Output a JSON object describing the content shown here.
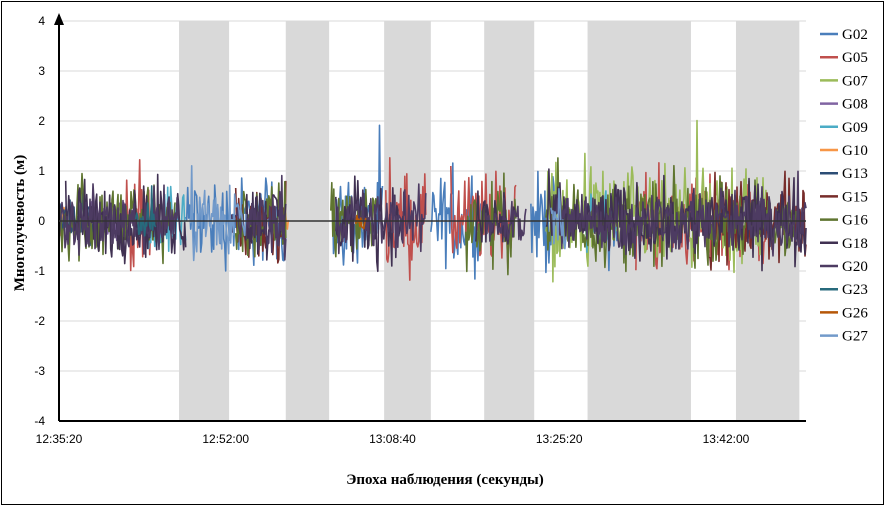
{
  "chart_data": {
    "type": "line",
    "xlabel": "Эпоха наблюдения (секунды)",
    "ylabel": "Многолучевость (м)",
    "ylim": [
      -4,
      4
    ],
    "yticks": [
      "4",
      "3",
      "2",
      "1",
      "0",
      "-1",
      "-2",
      "-3",
      "-4"
    ],
    "x_range": [
      "12:35:20",
      "13:50:00"
    ],
    "xticks": [
      "12:35:20",
      "12:52:00",
      "13:08:40",
      "13:25:20",
      "13:42:00"
    ],
    "grid": true,
    "legend_position": "right",
    "shaded_intervals": [
      [
        "12:47:20",
        "12:52:20"
      ],
      [
        "12:58:00",
        "13:02:20"
      ],
      [
        "13:07:50",
        "13:12:30"
      ],
      [
        "13:17:50",
        "13:22:50"
      ],
      [
        "13:28:10",
        "13:38:30"
      ],
      [
        "13:43:00",
        "13:49:20"
      ]
    ],
    "series": [
      {
        "name": "G02",
        "color": "#4a7ebb",
        "segments": [
          [
            "12:48:00",
            "12:58:00"
          ],
          [
            "13:02:40",
            "13:07:40"
          ],
          [
            "13:12:30",
            "13:17:30"
          ],
          [
            "13:22:30",
            "13:25:30"
          ],
          [
            "13:30:00",
            "13:32:00"
          ]
        ],
        "amplitude": 1.3
      },
      {
        "name": "G05",
        "color": "#c0504d",
        "segments": [
          [
            "12:42:00",
            "12:45:00"
          ],
          [
            "13:08:00",
            "13:12:00"
          ],
          [
            "13:14:30",
            "13:21:00"
          ],
          [
            "13:33:00",
            "13:46:00"
          ]
        ],
        "amplitude": 1.4
      },
      {
        "name": "G07",
        "color": "#9bbb59",
        "segments": [
          [
            "13:24:00",
            "13:46:00"
          ]
        ],
        "amplitude": 1.5
      },
      {
        "name": "G08",
        "color": "#8064a2",
        "segments": [
          [
            "12:38:00",
            "12:42:00"
          ]
        ],
        "amplitude": 0.6
      },
      {
        "name": "G09",
        "color": "#4bacc6",
        "segments": [
          [
            "12:44:00",
            "12:48:00"
          ],
          [
            "13:28:00",
            "13:31:00"
          ]
        ],
        "amplitude": 1.0
      },
      {
        "name": "G10",
        "color": "#f79646",
        "segments": [
          [
            "12:35:20",
            "12:36:30"
          ],
          [
            "12:57:40",
            "12:58:20"
          ]
        ],
        "amplitude": 0.4
      },
      {
        "name": "G13",
        "color": "#2c4d75",
        "segments": [
          [
            "12:35:20",
            "12:39:00"
          ]
        ],
        "amplitude": 0.8
      },
      {
        "name": "G15",
        "color": "#772c2a",
        "segments": [
          [
            "12:53:00",
            "12:58:00"
          ],
          [
            "13:40:00",
            "13:50:00"
          ]
        ],
        "amplitude": 1.2
      },
      {
        "name": "G16",
        "color": "#5f7530",
        "segments": [
          [
            "12:35:20",
            "12:47:00"
          ],
          [
            "12:53:00",
            "12:58:00"
          ],
          [
            "13:02:30",
            "13:07:00"
          ],
          [
            "13:16:00",
            "13:21:00"
          ],
          [
            "13:24:00",
            "13:49:00"
          ]
        ],
        "amplitude": 1.2
      },
      {
        "name": "G18",
        "color": "#403152",
        "segments": [
          [
            "12:36:00",
            "12:48:00"
          ],
          [
            "12:54:00",
            "12:58:00"
          ],
          [
            "13:03:00",
            "13:10:00"
          ],
          [
            "13:17:00",
            "13:21:00"
          ],
          [
            "13:24:00",
            "13:50:00"
          ]
        ],
        "amplitude": 1.1
      },
      {
        "name": "G20",
        "color": "#4d3b62",
        "segments": [
          [
            "12:35:20",
            "12:47:30"
          ],
          [
            "12:52:30",
            "12:58:00"
          ],
          [
            "13:03:00",
            "13:12:00"
          ],
          [
            "13:18:00",
            "13:22:00"
          ],
          [
            "13:25:00",
            "13:50:00"
          ]
        ],
        "amplitude": 0.9
      },
      {
        "name": "G23",
        "color": "#276a7c",
        "segments": [
          [
            "12:43:00",
            "12:45:00"
          ]
        ],
        "amplitude": 0.5
      },
      {
        "name": "G26",
        "color": "#b65708",
        "segments": [
          [
            "13:05:00",
            "13:06:00"
          ]
        ],
        "amplitude": 0.4
      },
      {
        "name": "G27",
        "color": "#729aca",
        "segments": [
          [
            "12:48:30",
            "12:54:00"
          ],
          [
            "13:24:30",
            "13:26:00"
          ]
        ],
        "amplitude": 1.2
      }
    ]
  }
}
